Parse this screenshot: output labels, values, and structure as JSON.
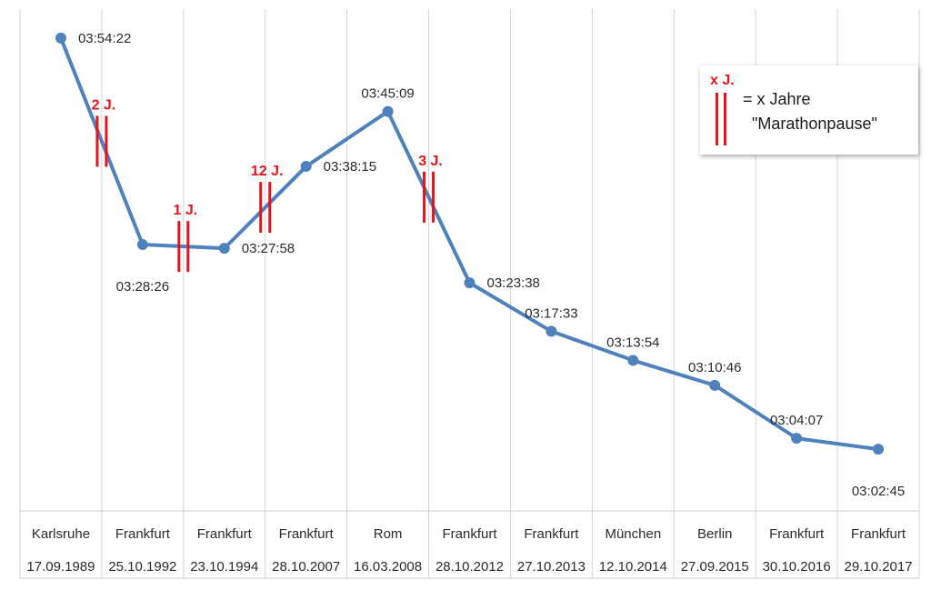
{
  "chart_data": {
    "type": "line",
    "categories": [
      {
        "city": "Karlsruhe",
        "date": "17.09.1989"
      },
      {
        "city": "Frankfurt",
        "date": "25.10.1992"
      },
      {
        "city": "Frankfurt",
        "date": "23.10.1994"
      },
      {
        "city": "Frankfurt",
        "date": "28.10.2007"
      },
      {
        "city": "Rom",
        "date": "16.03.2008"
      },
      {
        "city": "Frankfurt",
        "date": "28.10.2012"
      },
      {
        "city": "Frankfurt",
        "date": "27.10.2013"
      },
      {
        "city": "München",
        "date": "12.10.2014"
      },
      {
        "city": "Berlin",
        "date": "27.09.2015"
      },
      {
        "city": "Frankfurt",
        "date": "30.10.2016"
      },
      {
        "city": "Frankfurt",
        "date": "29.10.2017"
      }
    ],
    "series": [
      {
        "values": [
          "03:54:22",
          "03:28:26",
          "03:27:58",
          "03:38:15",
          "03:45:09",
          "03:23:38",
          "03:17:33",
          "03:13:54",
          "03:10:46",
          "03:04:07",
          "03:02:45"
        ],
        "color": "#4f81bd"
      }
    ],
    "ylim": [
      "02:55:00",
      "03:58:00"
    ],
    "label_position": [
      "right",
      "below",
      "right",
      "right",
      "above",
      "right",
      "above",
      "above",
      "above",
      "above",
      "below"
    ],
    "gaps": [
      {
        "after_index": 0,
        "label": "2 J."
      },
      {
        "after_index": 1,
        "label": "1 J."
      },
      {
        "after_index": 2,
        "label": "12 J."
      },
      {
        "after_index": 4,
        "label": "3 J."
      }
    ],
    "gap_color": "#e8121a",
    "grid": true,
    "legend": {
      "position": "top-right",
      "marker_label": "x J.",
      "text_line1": "= x Jahre",
      "text_line2": "\"Marathonpause\""
    }
  }
}
